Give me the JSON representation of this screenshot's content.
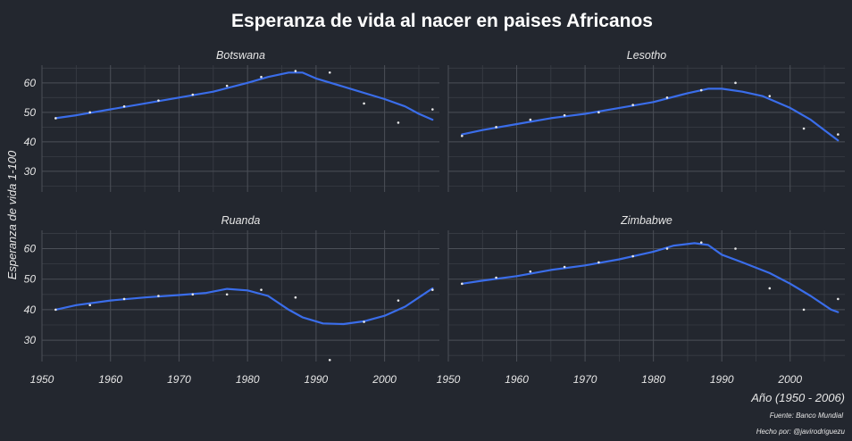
{
  "title": "Esperanza de vida al nacer en paises Africanos",
  "xlabel": "Año (1950 - 2006)",
  "ylabel": "Esperanza de vida 1-100",
  "caption_source": "Fuente: Banco Mundial",
  "caption_author": "Hecho por: @javirodriguezu",
  "colors": {
    "background": "#23272f",
    "trend": "#3a6dea",
    "point": "#e8e8e8"
  },
  "chart_data": [
    {
      "type": "line",
      "panel": "Botswana",
      "xlim": [
        1950,
        2008
      ],
      "ylim": [
        23,
        66
      ],
      "x_ticks": [
        1950,
        1960,
        1970,
        1980,
        1990,
        2000
      ],
      "y_ticks": [
        30,
        40,
        50,
        60
      ],
      "points": [
        [
          1952,
          48
        ],
        [
          1957,
          50
        ],
        [
          1962,
          52
        ],
        [
          1967,
          54
        ],
        [
          1972,
          56
        ],
        [
          1977,
          59
        ],
        [
          1982,
          62
        ],
        [
          1987,
          64
        ],
        [
          1992,
          63.5
        ],
        [
          1997,
          53
        ],
        [
          2002,
          46.5
        ],
        [
          2007,
          51
        ]
      ],
      "trend": [
        [
          1952,
          48
        ],
        [
          1955,
          49
        ],
        [
          1960,
          51
        ],
        [
          1965,
          53
        ],
        [
          1970,
          55
        ],
        [
          1975,
          57
        ],
        [
          1980,
          60
        ],
        [
          1983,
          62
        ],
        [
          1986,
          63.5
        ],
        [
          1988,
          63.5
        ],
        [
          1990,
          61.5
        ],
        [
          1995,
          58
        ],
        [
          2000,
          54.5
        ],
        [
          2003,
          52
        ],
        [
          2005,
          49.5
        ],
        [
          2007,
          47.5
        ]
      ]
    },
    {
      "type": "line",
      "panel": "Lesotho",
      "xlim": [
        1950,
        2008
      ],
      "ylim": [
        23,
        66
      ],
      "x_ticks": [
        1950,
        1960,
        1970,
        1980,
        1990,
        2000
      ],
      "y_ticks": [
        30,
        40,
        50,
        60
      ],
      "points": [
        [
          1952,
          42
        ],
        [
          1957,
          45
        ],
        [
          1962,
          47.5
        ],
        [
          1967,
          49
        ],
        [
          1972,
          50
        ],
        [
          1977,
          52.5
        ],
        [
          1982,
          55
        ],
        [
          1987,
          57.5
        ],
        [
          1992,
          60
        ],
        [
          1997,
          55.5
        ],
        [
          2002,
          44.5
        ],
        [
          2007,
          42.5
        ]
      ],
      "trend": [
        [
          1952,
          42.5
        ],
        [
          1955,
          44
        ],
        [
          1960,
          46
        ],
        [
          1965,
          48
        ],
        [
          1970,
          49.5
        ],
        [
          1975,
          51.5
        ],
        [
          1980,
          53.5
        ],
        [
          1985,
          56.5
        ],
        [
          1988,
          58
        ],
        [
          1990,
          58
        ],
        [
          1993,
          57
        ],
        [
          1996,
          55.5
        ],
        [
          2000,
          51.5
        ],
        [
          2003,
          47.5
        ],
        [
          2005,
          44
        ],
        [
          2007,
          40.5
        ]
      ]
    },
    {
      "type": "line",
      "panel": "Ruanda",
      "xlim": [
        1950,
        2008
      ],
      "ylim": [
        23,
        66
      ],
      "x_ticks": [
        1950,
        1960,
        1970,
        1980,
        1990,
        2000
      ],
      "y_ticks": [
        30,
        40,
        50,
        60
      ],
      "points": [
        [
          1952,
          40
        ],
        [
          1957,
          41.5
        ],
        [
          1962,
          43.5
        ],
        [
          1967,
          44.5
        ],
        [
          1972,
          45
        ],
        [
          1977,
          45
        ],
        [
          1982,
          46.5
        ],
        [
          1987,
          44
        ],
        [
          1992,
          23.5
        ],
        [
          1997,
          36
        ],
        [
          2002,
          43
        ],
        [
          2007,
          46.5
        ]
      ],
      "trend": [
        [
          1952,
          40
        ],
        [
          1955,
          41.5
        ],
        [
          1960,
          43
        ],
        [
          1965,
          44
        ],
        [
          1970,
          44.8
        ],
        [
          1974,
          45.5
        ],
        [
          1977,
          46.8
        ],
        [
          1980,
          46.3
        ],
        [
          1983,
          44.5
        ],
        [
          1986,
          40
        ],
        [
          1988,
          37.5
        ],
        [
          1991,
          35.5
        ],
        [
          1994,
          35.3
        ],
        [
          1997,
          36.2
        ],
        [
          2000,
          38
        ],
        [
          2003,
          41
        ],
        [
          2006,
          45.5
        ],
        [
          2007,
          47
        ]
      ]
    },
    {
      "type": "line",
      "panel": "Zimbabwe",
      "xlim": [
        1950,
        2008
      ],
      "ylim": [
        23,
        66
      ],
      "x_ticks": [
        1950,
        1960,
        1970,
        1980,
        1990,
        2000
      ],
      "y_ticks": [
        30,
        40,
        50,
        60
      ],
      "points": [
        [
          1952,
          48.5
        ],
        [
          1957,
          50.5
        ],
        [
          1962,
          52.5
        ],
        [
          1967,
          54
        ],
        [
          1972,
          55.5
        ],
        [
          1977,
          57.5
        ],
        [
          1982,
          60
        ],
        [
          1987,
          62
        ],
        [
          1992,
          60
        ],
        [
          1997,
          47
        ],
        [
          2002,
          40
        ],
        [
          2007,
          43.5
        ]
      ],
      "trend": [
        [
          1952,
          48.5
        ],
        [
          1955,
          49.5
        ],
        [
          1960,
          51
        ],
        [
          1965,
          53
        ],
        [
          1970,
          54.5
        ],
        [
          1975,
          56.5
        ],
        [
          1980,
          59
        ],
        [
          1983,
          61
        ],
        [
          1986,
          61.8
        ],
        [
          1988,
          61.2
        ],
        [
          1990,
          58
        ],
        [
          1993,
          55.5
        ],
        [
          1997,
          52
        ],
        [
          2000,
          48.5
        ],
        [
          2003,
          44.5
        ],
        [
          2006,
          40
        ],
        [
          2007,
          39.2
        ]
      ]
    }
  ]
}
